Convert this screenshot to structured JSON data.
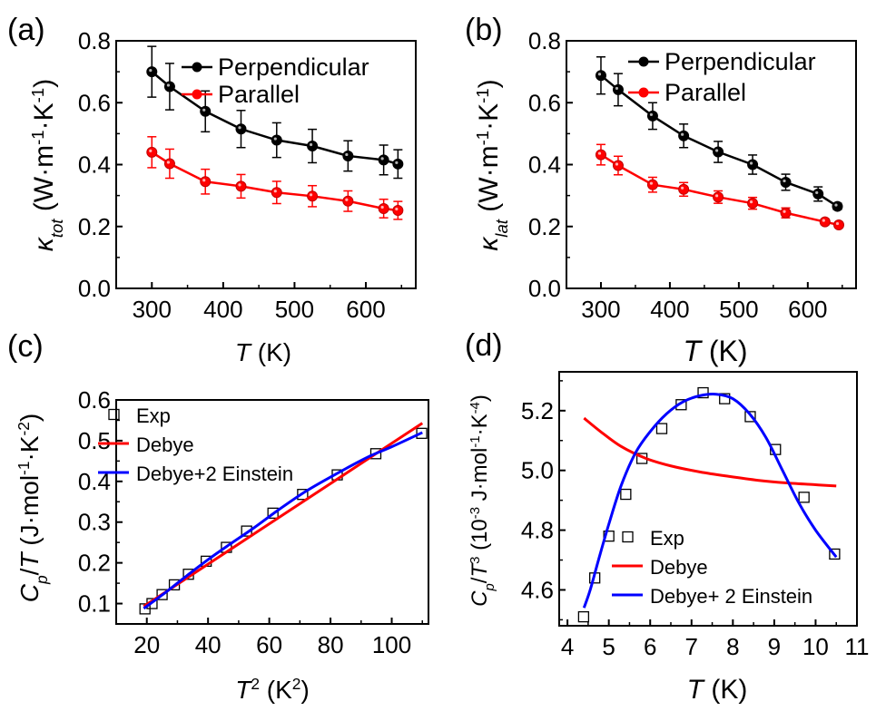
{
  "panel_labels": [
    "(a)",
    "(b)",
    "(c)",
    "(d)"
  ],
  "chart_data": [
    {
      "panel": "(a)",
      "type": "line",
      "xlabel": "T (K)",
      "ylabel": "κ_tot (W·m^-1·K^-1)",
      "xlim": [
        250,
        670
      ],
      "ylim": [
        0.0,
        0.8
      ],
      "xticks": [
        300,
        400,
        500,
        600
      ],
      "yticks": [
        0.0,
        0.2,
        0.4,
        0.6,
        0.8
      ],
      "legend": "top-right",
      "grid": false,
      "series": [
        {
          "name": "Perpendicular",
          "color": "#000000",
          "x": [
            300,
            325,
            375,
            425,
            475,
            525,
            575,
            625,
            645
          ],
          "y": [
            0.7,
            0.652,
            0.572,
            0.515,
            0.479,
            0.46,
            0.428,
            0.415,
            0.402
          ],
          "err": [
            0.082,
            0.075,
            0.066,
            0.06,
            0.056,
            0.054,
            0.049,
            0.048,
            0.046
          ]
        },
        {
          "name": "Parallel",
          "color": "#ff0000",
          "x": [
            300,
            325,
            375,
            425,
            475,
            525,
            575,
            625,
            645
          ],
          "y": [
            0.44,
            0.403,
            0.345,
            0.33,
            0.31,
            0.298,
            0.282,
            0.258,
            0.252
          ],
          "err": [
            0.05,
            0.047,
            0.04,
            0.038,
            0.036,
            0.034,
            0.033,
            0.03,
            0.029
          ]
        }
      ]
    },
    {
      "panel": "(b)",
      "type": "line",
      "xlabel": "T (K)",
      "ylabel": "κ_lat (W·m^-1·K^-1)",
      "xlim": [
        250,
        670
      ],
      "ylim": [
        0.0,
        0.8
      ],
      "xticks": [
        300,
        400,
        500,
        600
      ],
      "yticks": [
        0.0,
        0.2,
        0.4,
        0.6,
        0.8
      ],
      "legend": "top-right",
      "grid": false,
      "series": [
        {
          "name": "Perpendicular",
          "color": "#000000",
          "x": [
            300,
            325,
            375,
            420,
            470,
            520,
            568,
            615,
            643
          ],
          "y": [
            0.688,
            0.642,
            0.557,
            0.493,
            0.441,
            0.4,
            0.343,
            0.305,
            0.265
          ],
          "err": [
            0.06,
            0.052,
            0.043,
            0.038,
            0.034,
            0.031,
            0.026,
            0.023,
            0.01
          ]
        },
        {
          "name": "Parallel",
          "color": "#ff0000",
          "x": [
            300,
            325,
            375,
            420,
            470,
            520,
            568,
            625,
            645
          ],
          "y": [
            0.432,
            0.397,
            0.335,
            0.32,
            0.295,
            0.275,
            0.244,
            0.215,
            0.205
          ],
          "err": [
            0.033,
            0.03,
            0.024,
            0.022,
            0.02,
            0.019,
            0.016,
            0.009,
            0.008
          ]
        }
      ]
    },
    {
      "panel": "(c)",
      "type": "scatter",
      "xlabel": "T^2 (K^2)",
      "ylabel": "C_p/T (J·mol^-1·K^-2)",
      "xlim": [
        10,
        112
      ],
      "ylim": [
        0.05,
        0.6
      ],
      "xticks": [
        20,
        40,
        60,
        80,
        100
      ],
      "yticks": [
        0.1,
        0.2,
        0.3,
        0.4,
        0.5,
        0.6
      ],
      "legend": "top-left",
      "grid": false,
      "series": [
        {
          "name": "Exp",
          "marker": "open-square",
          "color": "#000000",
          "x": [
            19.4,
            21.7,
            25.0,
            29.0,
            33.6,
            39.4,
            46.0,
            52.6,
            61.2,
            70.9,
            82.2,
            94.8,
            109.8
          ],
          "y": [
            0.087,
            0.1,
            0.122,
            0.146,
            0.172,
            0.204,
            0.238,
            0.278,
            0.322,
            0.368,
            0.416,
            0.468,
            0.518
          ]
        },
        {
          "name": "Debye",
          "color": "#ff0000",
          "x": [
            19,
            110
          ],
          "y": [
            0.093,
            0.543
          ]
        },
        {
          "name": "Debye+2 Einstein",
          "color": "#0000ff",
          "x": [
            19,
            25,
            33,
            40,
            47,
            55,
            63,
            72,
            82,
            92,
            100,
            110
          ],
          "y": [
            0.088,
            0.121,
            0.168,
            0.208,
            0.245,
            0.286,
            0.33,
            0.376,
            0.419,
            0.459,
            0.485,
            0.52
          ]
        }
      ]
    },
    {
      "panel": "(d)",
      "type": "scatter",
      "xlabel": "T (K)",
      "ylabel": "C_p/T^3 (10^-3 J·mol^-1·K^-4)",
      "xlim": [
        3.8,
        11
      ],
      "ylim": [
        4.48,
        5.33
      ],
      "xticks": [
        4,
        5,
        6,
        7,
        8,
        9,
        10,
        11
      ],
      "yticks": [
        4.6,
        4.8,
        5.0,
        5.2
      ],
      "legend": "bottom-left",
      "grid": false,
      "series": [
        {
          "name": "Exp",
          "marker": "open-square",
          "color": "#000000",
          "x": [
            4.39,
            4.66,
            5.0,
            5.41,
            5.8,
            6.28,
            6.75,
            7.28,
            7.8,
            8.42,
            9.03,
            9.72,
            10.46
          ],
          "y": [
            4.51,
            4.64,
            4.78,
            4.92,
            5.04,
            5.14,
            5.22,
            5.26,
            5.24,
            5.18,
            5.07,
            4.91,
            4.72
          ]
        },
        {
          "name": "Debye",
          "color": "#ff0000",
          "x": [
            4.4,
            4.8,
            5.3,
            5.9,
            6.5,
            7.2,
            7.9,
            8.6,
            9.3,
            10.0,
            10.5
          ],
          "y": [
            5.175,
            5.13,
            5.08,
            5.04,
            5.015,
            4.995,
            4.98,
            4.967,
            4.958,
            4.952,
            4.948
          ]
        },
        {
          "name": "Debye+ 2 Einstein",
          "color": "#0000ff",
          "x": [
            4.4,
            4.55,
            4.75,
            5.0,
            5.3,
            5.65,
            6.0,
            6.4,
            6.8,
            7.2,
            7.6,
            8.0,
            8.4,
            8.8,
            9.2,
            9.6,
            10.0,
            10.5
          ],
          "y": [
            4.54,
            4.6,
            4.7,
            4.82,
            4.95,
            5.06,
            5.13,
            5.19,
            5.23,
            5.25,
            5.255,
            5.24,
            5.19,
            5.11,
            5.0,
            4.89,
            4.8,
            4.71
          ]
        }
      ]
    }
  ]
}
